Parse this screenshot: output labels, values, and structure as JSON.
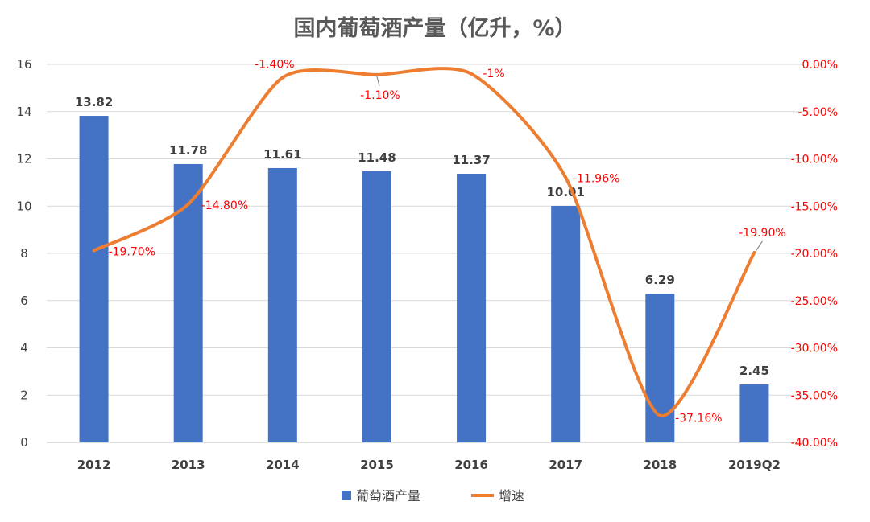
{
  "chart_data": {
    "type": "bar+line",
    "title": "国内葡萄酒产量（亿升，%）",
    "categories": [
      "2012",
      "2013",
      "2014",
      "2015",
      "2016",
      "2017",
      "2018",
      "2019Q2"
    ],
    "series": [
      {
        "name": "葡萄酒产量",
        "type": "bar",
        "axis": "left",
        "color": "#4472c4",
        "values": [
          13.82,
          11.78,
          11.61,
          11.48,
          11.37,
          10.01,
          6.29,
          2.45
        ],
        "labels": [
          "13.82",
          "11.78",
          "11.61",
          "11.48",
          "11.37",
          "10.01",
          "6.29",
          "2.45"
        ]
      },
      {
        "name": "增速",
        "type": "line",
        "axis": "right",
        "color": "#ed7d31",
        "values": [
          -19.7,
          -14.8,
          -1.4,
          -1.1,
          -1,
          -11.96,
          -37.16,
          -19.9
        ],
        "labels": [
          "-19.70%",
          "-14.80%",
          "-1.40%",
          "-1.10%",
          "-1%",
          "-11.96%",
          "-37.16%",
          "-19.90%"
        ]
      }
    ],
    "left_axis": {
      "ylim": [
        0,
        16
      ],
      "ticks": [
        "0",
        "2",
        "4",
        "6",
        "8",
        "10",
        "12",
        "14",
        "16"
      ]
    },
    "right_axis": {
      "ylim": [
        -40,
        0
      ],
      "ticks": [
        "0.00%",
        "-5.00%",
        "-10.00%",
        "-15.00%",
        "-20.00%",
        "-25.00%",
        "-30.00%",
        "-35.00%",
        "-40.00%"
      ],
      "color": "#ff0000"
    },
    "grid": true,
    "legend": "bottom"
  }
}
